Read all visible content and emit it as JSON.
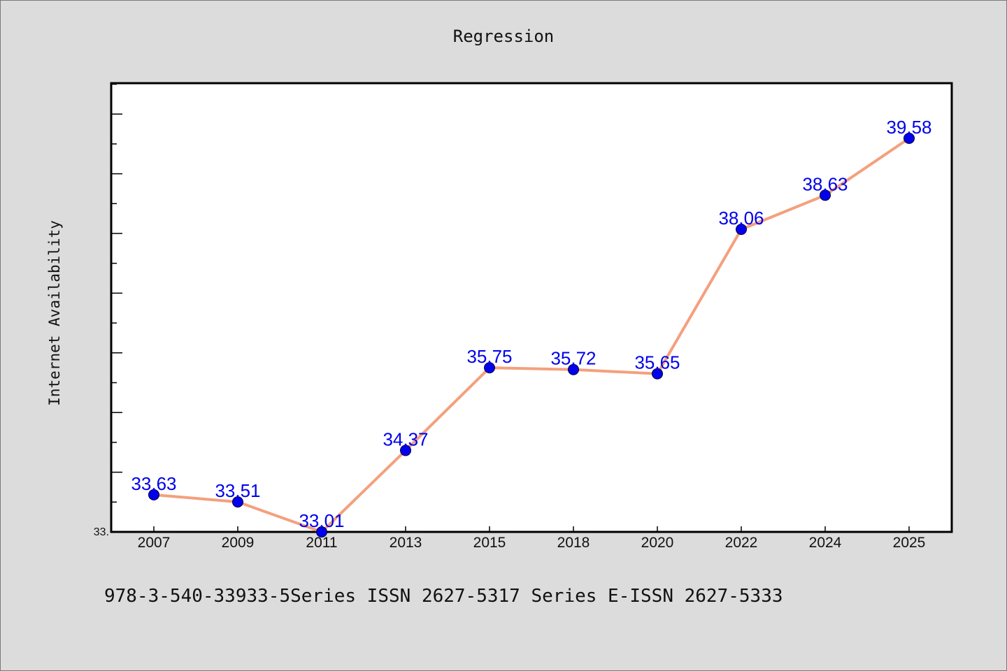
{
  "chart_data": {
    "type": "line",
    "title": "Regression",
    "ylabel": "Internet Availability",
    "xlabel": "",
    "categories": [
      "2007",
      "2009",
      "2011",
      "2013",
      "2015",
      "2018",
      "2020",
      "2022",
      "2024",
      "2025"
    ],
    "values": [
      33.63,
      33.51,
      33.01,
      34.37,
      35.75,
      35.72,
      35.65,
      38.06,
      38.63,
      39.58
    ],
    "data_labels": [
      "33.63",
      "33.51",
      "33.01",
      "34.37",
      "35.75",
      "35.72",
      "35.65",
      "38.06",
      "38.63",
      "39.58"
    ],
    "y_tick_label": "33.",
    "ylim": [
      33.01,
      40.5
    ],
    "grid": false,
    "legend": "none",
    "line_color": "#f4a07e",
    "marker_color": "#0000ee",
    "label_color": "#0000ee"
  },
  "footer": "978-3-540-33933-5Series ISSN 2627-5317 Series E-ISSN 2627-5333",
  "colors": {
    "background": "#dcdcdc",
    "plot_bg": "#ffffff",
    "axis": "#000000"
  }
}
